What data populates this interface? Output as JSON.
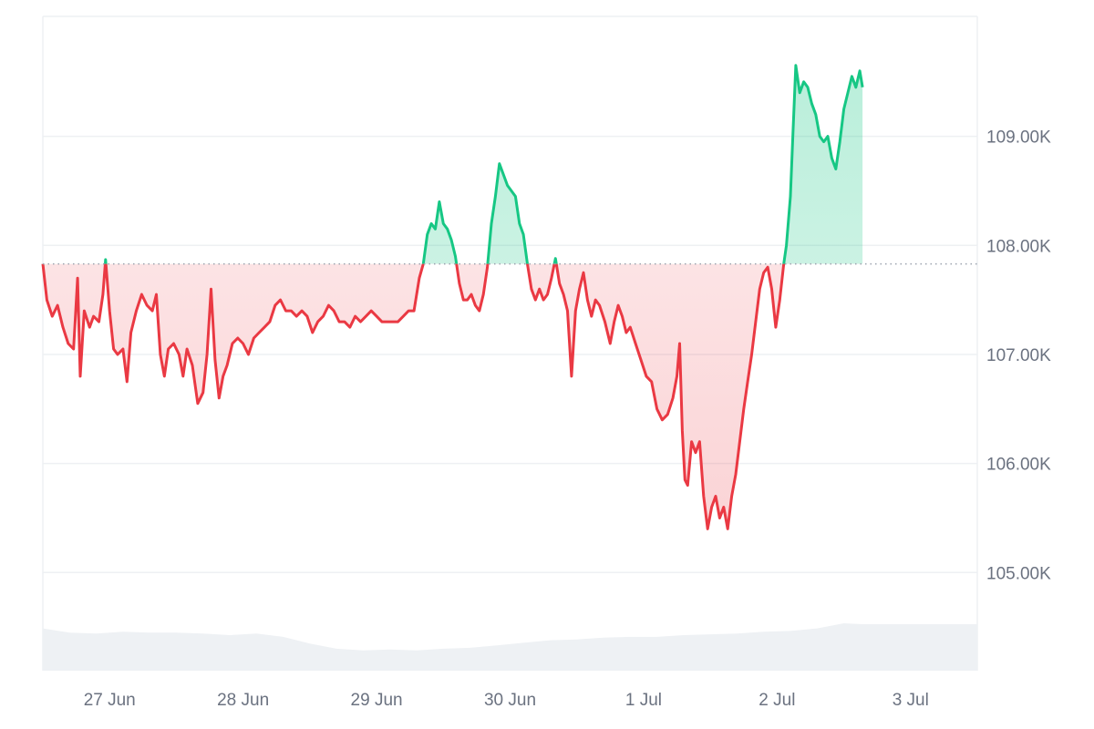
{
  "chart_data": {
    "type": "area",
    "title": "",
    "xlabel": "",
    "ylabel": "",
    "baseline": 107830,
    "y_ticks": [
      {
        "value": 109000,
        "label": "109.00K"
      },
      {
        "value": 108000,
        "label": "108.00K"
      },
      {
        "value": 107000,
        "label": "107.00K"
      },
      {
        "value": 106000,
        "label": "106.00K"
      },
      {
        "value": 105000,
        "label": "105.00K"
      }
    ],
    "ylim": [
      104100,
      110100
    ],
    "xlim": [
      0,
      7.0
    ],
    "x_ticks": [
      {
        "value": 0.5,
        "label": "27 Jun"
      },
      {
        "value": 1.5,
        "label": "28 Jun"
      },
      {
        "value": 2.5,
        "label": "29 Jun"
      },
      {
        "value": 3.5,
        "label": "30 Jun"
      },
      {
        "value": 4.5,
        "label": "1 Jul"
      },
      {
        "value": 5.5,
        "label": "2 Jul"
      },
      {
        "value": 6.5,
        "label": "3 Jul"
      }
    ],
    "series": [
      {
        "kind": "price",
        "points": [
          [
            0.0,
            107830
          ],
          [
            0.03,
            107500
          ],
          [
            0.07,
            107350
          ],
          [
            0.11,
            107450
          ],
          [
            0.15,
            107250
          ],
          [
            0.19,
            107100
          ],
          [
            0.23,
            107050
          ],
          [
            0.26,
            107700
          ],
          [
            0.28,
            106800
          ],
          [
            0.31,
            107400
          ],
          [
            0.35,
            107250
          ],
          [
            0.38,
            107350
          ],
          [
            0.42,
            107300
          ],
          [
            0.45,
            107550
          ],
          [
            0.47,
            107870
          ],
          [
            0.5,
            107400
          ],
          [
            0.53,
            107050
          ],
          [
            0.56,
            107000
          ],
          [
            0.6,
            107050
          ],
          [
            0.63,
            106750
          ],
          [
            0.66,
            107200
          ],
          [
            0.7,
            107400
          ],
          [
            0.74,
            107550
          ],
          [
            0.78,
            107450
          ],
          [
            0.82,
            107400
          ],
          [
            0.85,
            107550
          ],
          [
            0.88,
            107000
          ],
          [
            0.91,
            106800
          ],
          [
            0.94,
            107050
          ],
          [
            0.98,
            107100
          ],
          [
            1.02,
            107000
          ],
          [
            1.05,
            106800
          ],
          [
            1.08,
            107050
          ],
          [
            1.12,
            106900
          ],
          [
            1.16,
            106550
          ],
          [
            1.2,
            106650
          ],
          [
            1.23,
            107000
          ],
          [
            1.26,
            107600
          ],
          [
            1.29,
            106950
          ],
          [
            1.32,
            106600
          ],
          [
            1.35,
            106800
          ],
          [
            1.38,
            106900
          ],
          [
            1.42,
            107100
          ],
          [
            1.46,
            107150
          ],
          [
            1.5,
            107100
          ],
          [
            1.54,
            107000
          ],
          [
            1.58,
            107150
          ],
          [
            1.62,
            107200
          ],
          [
            1.66,
            107250
          ],
          [
            1.7,
            107300
          ],
          [
            1.74,
            107450
          ],
          [
            1.78,
            107500
          ],
          [
            1.82,
            107400
          ],
          [
            1.86,
            107400
          ],
          [
            1.9,
            107350
          ],
          [
            1.94,
            107400
          ],
          [
            1.98,
            107350
          ],
          [
            2.02,
            107200
          ],
          [
            2.06,
            107300
          ],
          [
            2.1,
            107350
          ],
          [
            2.14,
            107450
          ],
          [
            2.18,
            107400
          ],
          [
            2.22,
            107300
          ],
          [
            2.26,
            107300
          ],
          [
            2.3,
            107250
          ],
          [
            2.34,
            107350
          ],
          [
            2.38,
            107300
          ],
          [
            2.42,
            107350
          ],
          [
            2.46,
            107400
          ],
          [
            2.5,
            107350
          ],
          [
            2.54,
            107300
          ],
          [
            2.58,
            107300
          ],
          [
            2.62,
            107300
          ],
          [
            2.66,
            107300
          ],
          [
            2.7,
            107350
          ],
          [
            2.74,
            107400
          ],
          [
            2.78,
            107400
          ],
          [
            2.82,
            107700
          ],
          [
            2.85,
            107830
          ],
          [
            2.88,
            108100
          ],
          [
            2.91,
            108200
          ],
          [
            2.94,
            108150
          ],
          [
            2.97,
            108400
          ],
          [
            3.0,
            108200
          ],
          [
            3.03,
            108150
          ],
          [
            3.06,
            108050
          ],
          [
            3.09,
            107900
          ],
          [
            3.12,
            107650
          ],
          [
            3.15,
            107500
          ],
          [
            3.18,
            107500
          ],
          [
            3.21,
            107550
          ],
          [
            3.24,
            107450
          ],
          [
            3.27,
            107400
          ],
          [
            3.3,
            107550
          ],
          [
            3.33,
            107800
          ],
          [
            3.36,
            108200
          ],
          [
            3.39,
            108450
          ],
          [
            3.42,
            108750
          ],
          [
            3.45,
            108650
          ],
          [
            3.48,
            108550
          ],
          [
            3.51,
            108500
          ],
          [
            3.54,
            108450
          ],
          [
            3.57,
            108200
          ],
          [
            3.6,
            108100
          ],
          [
            3.63,
            107830
          ],
          [
            3.66,
            107600
          ],
          [
            3.69,
            107500
          ],
          [
            3.72,
            107600
          ],
          [
            3.75,
            107500
          ],
          [
            3.78,
            107550
          ],
          [
            3.81,
            107700
          ],
          [
            3.84,
            107880
          ],
          [
            3.87,
            107650
          ],
          [
            3.9,
            107550
          ],
          [
            3.93,
            107400
          ],
          [
            3.96,
            106800
          ],
          [
            3.99,
            107400
          ],
          [
            4.02,
            107600
          ],
          [
            4.05,
            107750
          ],
          [
            4.08,
            107500
          ],
          [
            4.11,
            107350
          ],
          [
            4.14,
            107500
          ],
          [
            4.17,
            107450
          ],
          [
            4.21,
            107300
          ],
          [
            4.25,
            107100
          ],
          [
            4.28,
            107300
          ],
          [
            4.31,
            107450
          ],
          [
            4.34,
            107350
          ],
          [
            4.37,
            107200
          ],
          [
            4.4,
            107250
          ],
          [
            4.44,
            107100
          ],
          [
            4.48,
            106950
          ],
          [
            4.52,
            106800
          ],
          [
            4.56,
            106750
          ],
          [
            4.6,
            106500
          ],
          [
            4.64,
            106400
          ],
          [
            4.68,
            106450
          ],
          [
            4.72,
            106600
          ],
          [
            4.75,
            106800
          ],
          [
            4.77,
            107100
          ],
          [
            4.79,
            106300
          ],
          [
            4.81,
            105850
          ],
          [
            4.83,
            105800
          ],
          [
            4.86,
            106200
          ],
          [
            4.89,
            106100
          ],
          [
            4.92,
            106200
          ],
          [
            4.95,
            105700
          ],
          [
            4.98,
            105400
          ],
          [
            5.01,
            105600
          ],
          [
            5.04,
            105700
          ],
          [
            5.07,
            105500
          ],
          [
            5.1,
            105600
          ],
          [
            5.13,
            105400
          ],
          [
            5.16,
            105700
          ],
          [
            5.19,
            105900
          ],
          [
            5.22,
            106200
          ],
          [
            5.25,
            106500
          ],
          [
            5.28,
            106750
          ],
          [
            5.31,
            107000
          ],
          [
            5.34,
            107300
          ],
          [
            5.37,
            107600
          ],
          [
            5.4,
            107750
          ],
          [
            5.43,
            107800
          ],
          [
            5.46,
            107600
          ],
          [
            5.49,
            107250
          ],
          [
            5.52,
            107500
          ],
          [
            5.55,
            107830
          ],
          [
            5.57,
            108000
          ],
          [
            5.6,
            108450
          ],
          [
            5.62,
            109050
          ],
          [
            5.64,
            109650
          ],
          [
            5.67,
            109400
          ],
          [
            5.7,
            109500
          ],
          [
            5.73,
            109450
          ],
          [
            5.76,
            109300
          ],
          [
            5.79,
            109200
          ],
          [
            5.82,
            109000
          ],
          [
            5.85,
            108950
          ],
          [
            5.88,
            109000
          ],
          [
            5.91,
            108800
          ],
          [
            5.94,
            108700
          ],
          [
            5.97,
            108950
          ],
          [
            6.0,
            109250
          ],
          [
            6.03,
            109400
          ],
          [
            6.06,
            109550
          ],
          [
            6.09,
            109450
          ],
          [
            6.12,
            109600
          ],
          [
            6.14,
            109450
          ]
        ]
      },
      {
        "kind": "volume",
        "points": [
          [
            0.0,
            0.5
          ],
          [
            0.2,
            0.45
          ],
          [
            0.4,
            0.44
          ],
          [
            0.6,
            0.46
          ],
          [
            0.8,
            0.45
          ],
          [
            1.0,
            0.45
          ],
          [
            1.2,
            0.44
          ],
          [
            1.4,
            0.42
          ],
          [
            1.6,
            0.44
          ],
          [
            1.8,
            0.4
          ],
          [
            2.0,
            0.32
          ],
          [
            2.2,
            0.26
          ],
          [
            2.4,
            0.24
          ],
          [
            2.6,
            0.25
          ],
          [
            2.8,
            0.24
          ],
          [
            3.0,
            0.26
          ],
          [
            3.2,
            0.27
          ],
          [
            3.4,
            0.3
          ],
          [
            3.6,
            0.33
          ],
          [
            3.8,
            0.36
          ],
          [
            4.0,
            0.37
          ],
          [
            4.2,
            0.39
          ],
          [
            4.4,
            0.4
          ],
          [
            4.6,
            0.4
          ],
          [
            4.8,
            0.42
          ],
          [
            5.0,
            0.43
          ],
          [
            5.2,
            0.44
          ],
          [
            5.4,
            0.46
          ],
          [
            5.6,
            0.47
          ],
          [
            5.8,
            0.5
          ],
          [
            6.0,
            0.56
          ],
          [
            6.14,
            0.55
          ]
        ]
      }
    ],
    "colors": {
      "up_line": "#16c784",
      "up_fill": "#d6f5e8",
      "down_line": "#ea3943",
      "down_fill": "#fbe3e4",
      "grid": "#eef0f3",
      "volume": "#eef1f4",
      "tick_text": "#6b7280",
      "baseline_dots": "#9ca3af"
    },
    "grid": true,
    "legend": "none"
  }
}
